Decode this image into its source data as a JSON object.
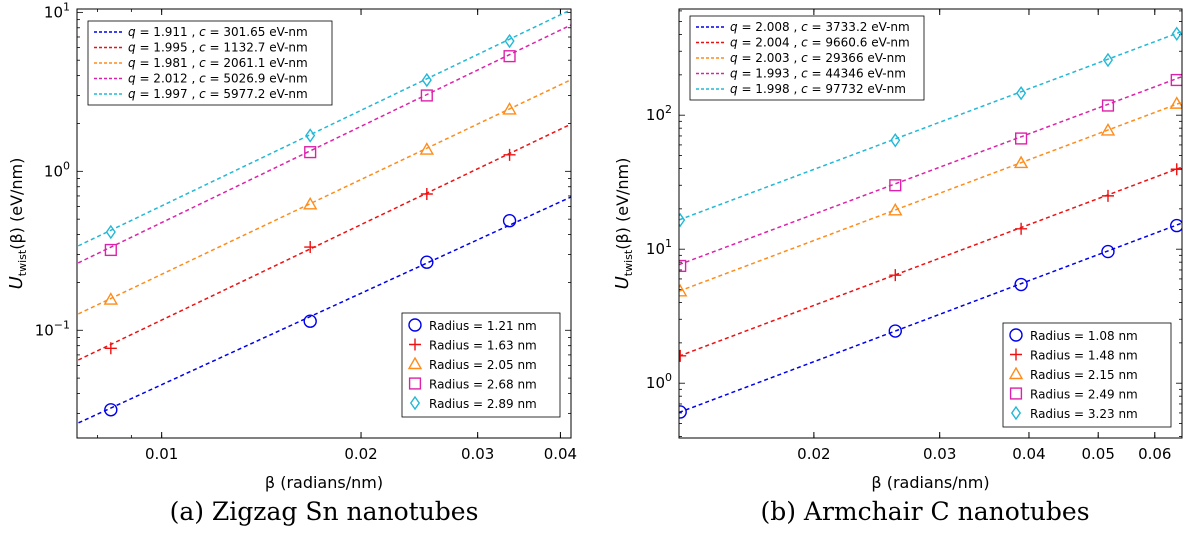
{
  "chart_data": [
    {
      "type": "scatter",
      "panel_caption": "(a) Zigzag Sn nanotubes",
      "xlabel": "β (radians/nm)",
      "ylabel": "Utwist(β) (eV/nm)",
      "ylabel_main": "U",
      "ylabel_sub": "twist",
      "ylabel_rest": "(β) (eV/nm)",
      "xscale": "log",
      "yscale": "log",
      "xlim": [
        0.00745,
        0.0415
      ],
      "ylim": [
        0.021,
        10.5
      ],
      "xticks": [
        0.01,
        0.02,
        0.03,
        0.04
      ],
      "xtick_labels": [
        "0.01",
        "0.02",
        "0.03",
        "0.04"
      ],
      "yticks": [
        0.1,
        1,
        10
      ],
      "ytick_labels": [
        {
          "base": "10",
          "exp": "−1"
        },
        {
          "base": "10",
          "exp": "0"
        },
        {
          "base": "10",
          "exp": "1"
        }
      ],
      "grid": false,
      "fit_legend_position": "top-left",
      "marker_legend_position": "bottom-right",
      "x": [
        0.00838,
        0.01676,
        0.02514,
        0.03352
      ],
      "series": [
        {
          "name": "Radius = 1.21 nm",
          "marker": "circle",
          "color": "#0000ee",
          "values": [
            0.0316,
            0.114,
            0.268,
            0.489
          ],
          "fit_label": {
            "q": "1.911",
            "c": "301.65"
          },
          "q": 1.911,
          "c": 301.65
        },
        {
          "name": "Radius = 1.63 nm",
          "marker": "plus",
          "color": "#ee1111",
          "values": [
            0.077,
            0.334,
            0.72,
            1.27
          ],
          "fit_label": {
            "q": "1.995",
            "c": "1132.7"
          },
          "q": 1.995,
          "c": 1132.7
        },
        {
          "name": "Radius = 2.05 nm",
          "marker": "triangle",
          "color": "#ff8c1a",
          "values": [
            0.156,
            0.62,
            1.37,
            2.45
          ],
          "fit_label": {
            "q": "1.981",
            "c": "2061.1"
          },
          "q": 1.981,
          "c": 2061.1
        },
        {
          "name": "Radius = 2.68 nm",
          "marker": "square",
          "color": "#dd22aa",
          "values": [
            0.32,
            1.32,
            3.0,
            5.3
          ],
          "fit_label": {
            "q": "2.012",
            "c": "5026.9"
          },
          "q": 2.012,
          "c": 5026.9
        },
        {
          "name": "Radius = 2.89 nm",
          "marker": "diamond",
          "color": "#22b8d6",
          "values": [
            0.415,
            1.68,
            3.75,
            6.6
          ],
          "fit_label": {
            "q": "1.997",
            "c": "5977.2"
          },
          "q": 1.997,
          "c": 5977.2
        }
      ]
    },
    {
      "type": "scatter",
      "panel_caption": "(b) Armchair C nanotubes",
      "xlabel": "β (radians/nm)",
      "ylabel": "Utwist(β) (eV/nm)",
      "ylabel_main": "U",
      "ylabel_sub": "twist",
      "ylabel_rest": "(β) (eV/nm)",
      "xscale": "log",
      "yscale": "log",
      "xlim": [
        0.01295,
        0.0655
      ],
      "ylim": [
        0.39,
        620
      ],
      "xticks": [
        0.02,
        0.03,
        0.04,
        0.05,
        0.06
      ],
      "xtick_labels": [
        "0.02",
        "0.03",
        "0.04",
        "0.05",
        "0.06"
      ],
      "yticks": [
        1,
        10,
        100
      ],
      "ytick_labels": [
        {
          "base": "10",
          "exp": "0"
        },
        {
          "base": "10",
          "exp": "1"
        },
        {
          "base": "10",
          "exp": "2"
        }
      ],
      "grid": false,
      "fit_legend_position": "top-left",
      "marker_legend_position": "bottom-right",
      "x": [
        0.013,
        0.026,
        0.039,
        0.0516,
        0.0644
      ],
      "series": [
        {
          "name": "Radius = 1.08 nm",
          "marker": "circle",
          "color": "#0000ee",
          "values": [
            0.61,
            2.45,
            5.45,
            9.6,
            15.0
          ],
          "fit_label": {
            "q": "2.008",
            "c": "3733.2"
          },
          "q": 2.008,
          "c": 3733.2
        },
        {
          "name": "Radius = 1.48 nm",
          "marker": "plus",
          "color": "#ee1111",
          "values": [
            1.6,
            6.4,
            14.2,
            25.0,
            39.5
          ],
          "fit_label": {
            "q": "2.004",
            "c": "9660.6"
          },
          "q": 2.004,
          "c": 9660.6
        },
        {
          "name": "Radius = 2.15 nm",
          "marker": "triangle",
          "color": "#ff8c1a",
          "values": [
            4.85,
            19.5,
            44.0,
            77.0,
            122.0
          ],
          "fit_label": {
            "q": "2.003",
            "c": "29366"
          },
          "q": 2.003,
          "c": 29366
        },
        {
          "name": "Radius = 2.49 nm",
          "marker": "square",
          "color": "#dd22aa",
          "values": [
            7.5,
            30.0,
            67.0,
            118.0,
            183.0
          ],
          "fit_label": {
            "q": "1.993",
            "c": "44346"
          },
          "q": 1.993,
          "c": 44346
        },
        {
          "name": "Radius = 3.23 nm",
          "marker": "diamond",
          "color": "#22b8d6",
          "values": [
            16.5,
            65.0,
            146.0,
            258.0,
            405.0
          ],
          "fit_label": {
            "q": "1.998",
            "c": "97732"
          },
          "q": 1.998,
          "c": 97732
        }
      ]
    }
  ],
  "fit_legend_format": {
    "q_symbol": "q",
    "c_symbol": "c",
    "equals": " = ",
    "separator": " , ",
    "unit": " eV-nm"
  }
}
